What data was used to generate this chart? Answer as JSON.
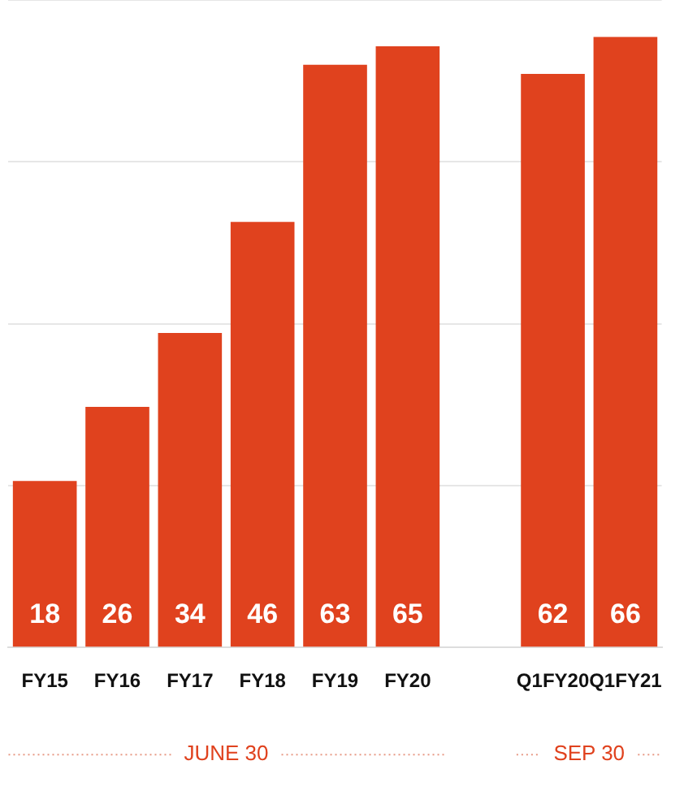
{
  "chart_data": {
    "type": "bar",
    "categories": [
      "FY15",
      "FY16",
      "FY17",
      "FY18",
      "FY19",
      "FY20",
      null,
      "Q1FY20",
      "Q1FY21"
    ],
    "values": [
      18,
      26,
      34,
      46,
      63,
      65,
      null,
      62,
      66
    ],
    "color": "#e0421e",
    "ylim": [
      0,
      70
    ],
    "yticks": [
      {
        "value": 0,
        "label": null
      },
      {
        "value": 17.5,
        "label": null
      },
      {
        "value": 35,
        "label": null
      },
      {
        "value": 52.5,
        "label": null
      },
      {
        "value": 70,
        "label": null
      }
    ],
    "grid": "y",
    "tick_labels": "x",
    "data_labels": true,
    "annotations": [
      "JUNE 30",
      "SEP 30"
    ]
  }
}
